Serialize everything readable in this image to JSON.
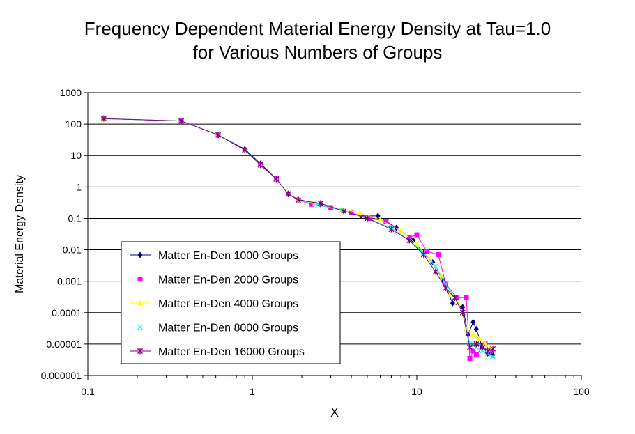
{
  "chart_data": {
    "type": "scatter",
    "title": [
      "Frequency Dependent Material Energy Density at Tau=1.0",
      "for Various Numbers of Groups"
    ],
    "xlabel": "X",
    "ylabel": "Material Energy Density",
    "xscale": "log",
    "yscale": "log",
    "xlim": [
      0.1,
      100
    ],
    "ylim": [
      1e-06,
      1000
    ],
    "x_ticks": [
      0.1,
      1,
      10,
      100
    ],
    "x_tick_labels": [
      "0.1",
      "1",
      "10",
      "100"
    ],
    "y_ticks": [
      1e-06,
      1e-05,
      0.0001,
      0.001,
      0.01,
      0.1,
      1,
      10,
      100,
      1000
    ],
    "y_tick_labels": [
      "0.000001",
      "0.00001",
      "0.0001",
      "0.001",
      "0.01",
      "0.1",
      "1",
      "10",
      "100",
      "1000"
    ],
    "grid": "horizontal major lines",
    "legend_position": "bottom-left inside plot",
    "series": [
      {
        "name": "Matter En-Den 1000 Groups",
        "color": "#000080",
        "marker": "diamond",
        "points": [
          [
            0.125,
            150
          ],
          [
            0.37,
            125
          ],
          [
            0.62,
            45
          ],
          [
            0.9,
            16
          ],
          [
            1.12,
            5.5
          ],
          [
            1.4,
            1.8
          ],
          [
            1.65,
            0.6
          ],
          [
            1.9,
            0.4
          ],
          [
            2.6,
            0.28
          ],
          [
            3.6,
            0.17
          ],
          [
            4.6,
            0.12
          ],
          [
            5.8,
            0.12
          ],
          [
            7.5,
            0.05
          ],
          [
            9.5,
            0.02
          ],
          [
            11,
            0.008
          ],
          [
            12.5,
            0.004
          ],
          [
            14.5,
            0.001
          ],
          [
            16.5,
            0.0002
          ],
          [
            19,
            0.00015
          ],
          [
            20.5,
            2e-05
          ],
          [
            22,
            5e-05
          ],
          [
            23,
            3e-05
          ],
          [
            25,
            8e-06
          ],
          [
            27,
            5e-06
          ],
          [
            29,
            4.5e-06
          ]
        ]
      },
      {
        "name": "Matter En-Den 2000 Groups",
        "color": "#ff00ff",
        "marker": "square",
        "points": [
          [
            0.125,
            150
          ],
          [
            0.37,
            125
          ],
          [
            0.62,
            45
          ],
          [
            0.9,
            15
          ],
          [
            1.12,
            5
          ],
          [
            1.4,
            1.8
          ],
          [
            1.65,
            0.6
          ],
          [
            1.9,
            0.38
          ],
          [
            2.3,
            0.28
          ],
          [
            3,
            0.22
          ],
          [
            4,
            0.15
          ],
          [
            5.2,
            0.1
          ],
          [
            6.5,
            0.08
          ],
          [
            9,
            0.025
          ],
          [
            10,
            0.03
          ],
          [
            11.5,
            0.009
          ],
          [
            13.5,
            0.007
          ],
          [
            15,
            0.0008
          ],
          [
            17.5,
            0.0003
          ],
          [
            20,
            0.0003
          ],
          [
            21,
            3.5e-06
          ],
          [
            22,
            6e-06
          ],
          [
            23,
            4.5e-06
          ],
          [
            26,
            1e-05
          ],
          [
            28,
            6e-06
          ]
        ]
      },
      {
        "name": "Matter En-Den 4000 Groups",
        "color": "#ffff00",
        "marker": "triangle",
        "points": [
          [
            0.125,
            150
          ],
          [
            0.37,
            125
          ],
          [
            0.62,
            45
          ],
          [
            0.9,
            15
          ],
          [
            1.12,
            5
          ],
          [
            1.4,
            1.8
          ],
          [
            1.65,
            0.6
          ],
          [
            1.9,
            0.38
          ],
          [
            2.4,
            0.3
          ],
          [
            3.5,
            0.2
          ],
          [
            4.5,
            0.15
          ],
          [
            6,
            0.09
          ],
          [
            8,
            0.04
          ],
          [
            10,
            0.015
          ],
          [
            12,
            0.005
          ],
          [
            14,
            0.0015
          ],
          [
            16,
            0.0004
          ],
          [
            18,
            0.0002
          ],
          [
            20,
            3e-05
          ],
          [
            22,
            2e-05
          ],
          [
            24,
            1.5e-05
          ],
          [
            26,
            1e-05
          ],
          [
            28,
            8e-06
          ]
        ]
      },
      {
        "name": "Matter En-Den 8000 Groups",
        "color": "#00ffff",
        "marker": "x",
        "points": [
          [
            0.125,
            150
          ],
          [
            0.37,
            125
          ],
          [
            0.62,
            45
          ],
          [
            0.9,
            15
          ],
          [
            1.12,
            5
          ],
          [
            1.4,
            1.8
          ],
          [
            1.65,
            0.6
          ],
          [
            1.9,
            0.38
          ],
          [
            2.5,
            0.27
          ],
          [
            3.5,
            0.18
          ],
          [
            5,
            0.1
          ],
          [
            7,
            0.05
          ],
          [
            9,
            0.02
          ],
          [
            11,
            0.008
          ],
          [
            13,
            0.003
          ],
          [
            15,
            0.0008
          ],
          [
            17,
            0.0003
          ],
          [
            19,
            0.0001
          ],
          [
            21,
            1e-05
          ],
          [
            23,
            8e-06
          ],
          [
            25,
            6e-06
          ],
          [
            27,
            5e-06
          ],
          [
            29,
            4e-06
          ]
        ]
      },
      {
        "name": "Matter En-Den 16000 Groups",
        "color": "#800080",
        "marker": "star",
        "points": [
          [
            0.125,
            150
          ],
          [
            0.37,
            125
          ],
          [
            0.62,
            45
          ],
          [
            0.9,
            15
          ],
          [
            1.12,
            5
          ],
          [
            1.4,
            1.8
          ],
          [
            1.65,
            0.6
          ],
          [
            1.9,
            0.38
          ],
          [
            2.6,
            0.3
          ],
          [
            3.6,
            0.17
          ],
          [
            5,
            0.1
          ],
          [
            7,
            0.045
          ],
          [
            9,
            0.02
          ],
          [
            11,
            0.007
          ],
          [
            13,
            0.002
          ],
          [
            15,
            0.0006
          ],
          [
            17,
            0.0003
          ],
          [
            19,
            0.0001
          ],
          [
            21,
            8e-06
          ],
          [
            23,
            1e-05
          ],
          [
            25,
            8e-06
          ],
          [
            27,
            6e-06
          ],
          [
            29,
            7e-06
          ]
        ]
      }
    ]
  }
}
